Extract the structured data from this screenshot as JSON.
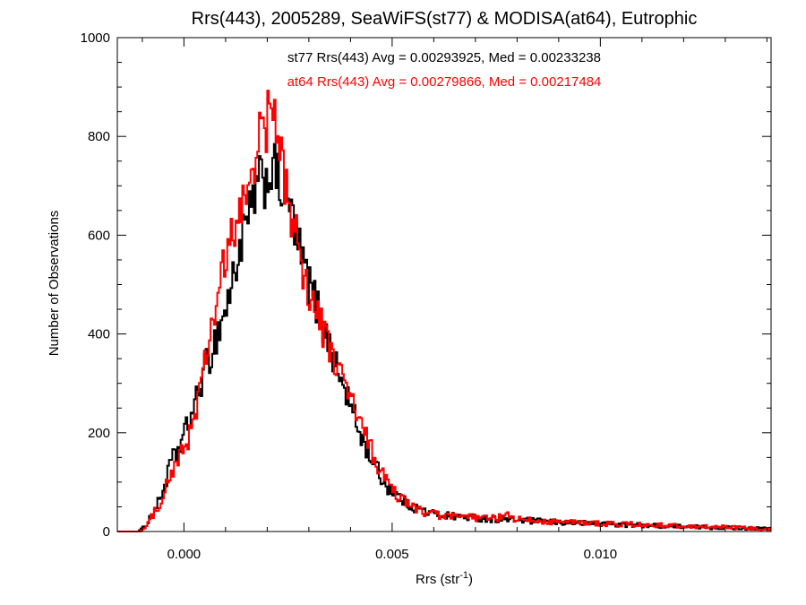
{
  "chart_data": {
    "type": "step-histogram",
    "title": "Rrs(443), 2005289, SeaWiFS(st77) & MODISA(at64), Eutrophic",
    "xlabel": "Rrs (str",
    "xlabel_sup": "-1",
    "xlabel_close": ")",
    "ylabel": "Number of Observations",
    "xlim": [
      -0.0016,
      0.0141
    ],
    "ylim": [
      0,
      1000
    ],
    "x_ticks": [
      0.0,
      0.005,
      0.01
    ],
    "x_tick_labels": [
      "0.000",
      "0.005",
      "0.010"
    ],
    "y_ticks": [
      0,
      200,
      400,
      600,
      800,
      1000
    ],
    "y_tick_labels": [
      "0",
      "200",
      "400",
      "600",
      "800",
      "1000"
    ],
    "annotations": [
      {
        "text": "st77 Rrs(443) Avg = 0.00293925, Med = 0.00233238",
        "color": "#000000"
      },
      {
        "text": "at64 Rrs(443) Avg = 0.00279866, Med = 0.00217484",
        "color": "#ff0000"
      }
    ],
    "bin_width": 4e-05,
    "series": [
      {
        "color": "#000000",
        "points": [
          [
            -0.0016,
            0
          ],
          [
            -0.0011,
            0
          ],
          [
            -0.001,
            5
          ],
          [
            -0.0009,
            15
          ],
          [
            -0.0008,
            30
          ],
          [
            -0.0007,
            45
          ],
          [
            -0.0006,
            60
          ],
          [
            -0.0005,
            85
          ],
          [
            -0.0004,
            110
          ],
          [
            -0.0003,
            145
          ],
          [
            -0.0002,
            150
          ],
          [
            -0.0001,
            175
          ],
          [
            0.0,
            195
          ],
          [
            0.0001,
            215
          ],
          [
            0.0002,
            245
          ],
          [
            0.0003,
            265
          ],
          [
            0.0004,
            300
          ],
          [
            0.0005,
            330
          ],
          [
            0.0006,
            345
          ],
          [
            0.0007,
            375
          ],
          [
            0.0008,
            400
          ],
          [
            0.0009,
            425
          ],
          [
            0.001,
            450
          ],
          [
            0.0011,
            480
          ],
          [
            0.0012,
            520
          ],
          [
            0.0013,
            560
          ],
          [
            0.0014,
            590
          ],
          [
            0.0015,
            620
          ],
          [
            0.0016,
            640
          ],
          [
            0.0017,
            680
          ],
          [
            0.0018,
            700
          ],
          [
            0.0019,
            710
          ],
          [
            0.002,
            715
          ],
          [
            0.0021,
            740
          ],
          [
            0.0022,
            720
          ],
          [
            0.0023,
            700
          ],
          [
            0.0024,
            690
          ],
          [
            0.0025,
            670
          ],
          [
            0.0026,
            640
          ],
          [
            0.0027,
            590
          ],
          [
            0.0028,
            560
          ],
          [
            0.0029,
            530
          ],
          [
            0.003,
            500
          ],
          [
            0.0031,
            480
          ],
          [
            0.0032,
            455
          ],
          [
            0.0033,
            430
          ],
          [
            0.0034,
            400
          ],
          [
            0.0035,
            380
          ],
          [
            0.0036,
            350
          ],
          [
            0.0037,
            320
          ],
          [
            0.0038,
            300
          ],
          [
            0.0039,
            280
          ],
          [
            0.004,
            255
          ],
          [
            0.0041,
            230
          ],
          [
            0.0042,
            205
          ],
          [
            0.0043,
            185
          ],
          [
            0.0044,
            165
          ],
          [
            0.0045,
            150
          ],
          [
            0.0046,
            135
          ],
          [
            0.0047,
            115
          ],
          [
            0.0048,
            100
          ],
          [
            0.0049,
            90
          ],
          [
            0.005,
            82
          ],
          [
            0.0051,
            75
          ],
          [
            0.0052,
            68
          ],
          [
            0.0053,
            60
          ],
          [
            0.0054,
            55
          ],
          [
            0.0055,
            50
          ],
          [
            0.0056,
            47
          ],
          [
            0.0057,
            44
          ],
          [
            0.0058,
            41
          ],
          [
            0.0059,
            38
          ],
          [
            0.006,
            36
          ],
          [
            0.0063,
            33
          ],
          [
            0.0066,
            30
          ],
          [
            0.007,
            28
          ],
          [
            0.0074,
            25
          ],
          [
            0.008,
            23
          ],
          [
            0.0086,
            20
          ],
          [
            0.0092,
            18
          ],
          [
            0.0098,
            16
          ],
          [
            0.0105,
            14
          ],
          [
            0.0112,
            12
          ],
          [
            0.012,
            10
          ],
          [
            0.0128,
            8
          ],
          [
            0.0135,
            7
          ],
          [
            0.0141,
            5
          ]
        ]
      },
      {
        "color": "#ff0000",
        "points": [
          [
            -0.0016,
            0
          ],
          [
            -0.0011,
            0
          ],
          [
            -0.001,
            3
          ],
          [
            -0.0009,
            10
          ],
          [
            -0.0008,
            25
          ],
          [
            -0.0007,
            40
          ],
          [
            -0.0006,
            55
          ],
          [
            -0.0005,
            75
          ],
          [
            -0.0004,
            95
          ],
          [
            -0.0003,
            120
          ],
          [
            -0.0002,
            130
          ],
          [
            -0.0001,
            150
          ],
          [
            0.0,
            165
          ],
          [
            0.0001,
            190
          ],
          [
            0.0002,
            215
          ],
          [
            0.0003,
            250
          ],
          [
            0.0004,
            290
          ],
          [
            0.0005,
            335
          ],
          [
            0.0006,
            380
          ],
          [
            0.0007,
            425
          ],
          [
            0.0008,
            470
          ],
          [
            0.0009,
            510
          ],
          [
            0.001,
            540
          ],
          [
            0.0011,
            575
          ],
          [
            0.0012,
            610
          ],
          [
            0.0013,
            625
          ],
          [
            0.0014,
            650
          ],
          [
            0.0015,
            690
          ],
          [
            0.0016,
            720
          ],
          [
            0.0017,
            760
          ],
          [
            0.0018,
            790
          ],
          [
            0.0019,
            810
          ],
          [
            0.002,
            830
          ],
          [
            0.0021,
            850
          ],
          [
            0.0022,
            820
          ],
          [
            0.0023,
            760
          ],
          [
            0.0024,
            720
          ],
          [
            0.0025,
            680
          ],
          [
            0.0026,
            640
          ],
          [
            0.0027,
            590
          ],
          [
            0.0028,
            560
          ],
          [
            0.0029,
            520
          ],
          [
            0.003,
            490
          ],
          [
            0.0031,
            460
          ],
          [
            0.0032,
            440
          ],
          [
            0.0033,
            415
          ],
          [
            0.0034,
            395
          ],
          [
            0.0035,
            370
          ],
          [
            0.0036,
            350
          ],
          [
            0.0037,
            330
          ],
          [
            0.0038,
            310
          ],
          [
            0.0039,
            290
          ],
          [
            0.004,
            270
          ],
          [
            0.0041,
            250
          ],
          [
            0.0042,
            225
          ],
          [
            0.0043,
            205
          ],
          [
            0.0044,
            185
          ],
          [
            0.0045,
            165
          ],
          [
            0.0046,
            145
          ],
          [
            0.0047,
            125
          ],
          [
            0.0048,
            110
          ],
          [
            0.0049,
            95
          ],
          [
            0.005,
            85
          ],
          [
            0.0051,
            75
          ],
          [
            0.0052,
            68
          ],
          [
            0.0053,
            60
          ],
          [
            0.0054,
            55
          ],
          [
            0.0055,
            50
          ],
          [
            0.0056,
            46
          ],
          [
            0.0057,
            42
          ],
          [
            0.0058,
            39
          ],
          [
            0.0059,
            36
          ],
          [
            0.006,
            34
          ],
          [
            0.0063,
            31
          ],
          [
            0.0066,
            29
          ],
          [
            0.007,
            28
          ],
          [
            0.0074,
            26
          ],
          [
            0.0078,
            32
          ],
          [
            0.008,
            24
          ],
          [
            0.0086,
            21
          ],
          [
            0.0092,
            19
          ],
          [
            0.0098,
            17
          ],
          [
            0.0105,
            15
          ],
          [
            0.0112,
            13
          ],
          [
            0.012,
            11
          ],
          [
            0.0128,
            9
          ],
          [
            0.0135,
            7
          ],
          [
            0.0141,
            5
          ]
        ]
      }
    ],
    "grid": false
  }
}
